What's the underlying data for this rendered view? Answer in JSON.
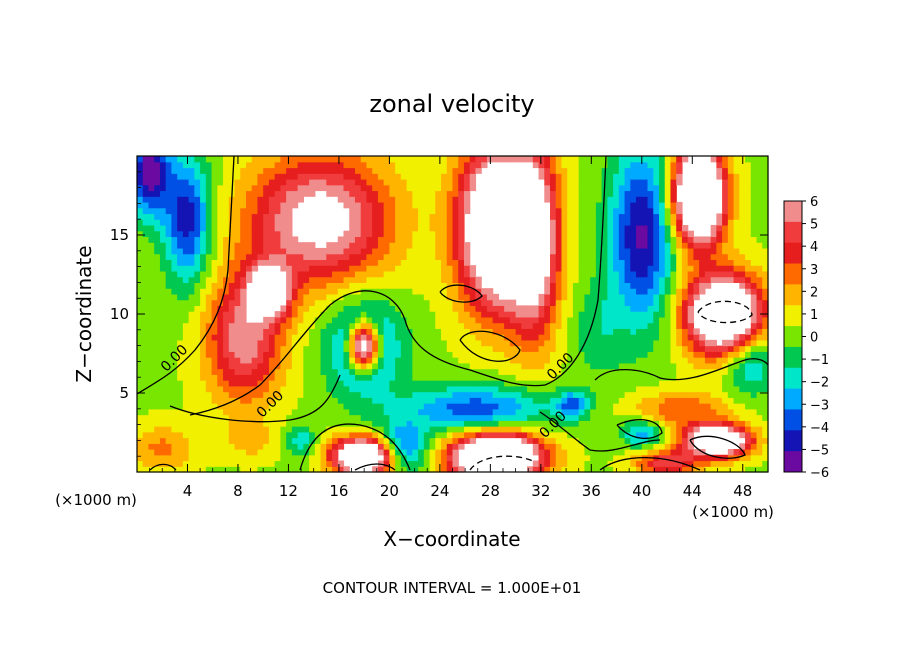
{
  "chart_data": {
    "type": "heatmap",
    "title": "zonal velocity",
    "xlabel": "X−coordinate",
    "ylabel": "Z−coordinate",
    "x_unit_label": "(×1000 m)",
    "x_unit_label_right": "(×1000 m)",
    "footer": "CONTOUR INTERVAL = 1.000E+01",
    "xlim": [
      0,
      50
    ],
    "ylim": [
      0,
      20
    ],
    "x_ticks": [
      4,
      8,
      12,
      16,
      20,
      24,
      28,
      32,
      36,
      40,
      44,
      48
    ],
    "y_ticks": [
      5,
      10,
      15
    ],
    "colorbar": {
      "min": -6,
      "max": 6,
      "labels": [
        "6",
        "5",
        "4",
        "3",
        "2",
        "1",
        "0",
        "−1",
        "−2",
        "−3",
        "−4",
        "−5",
        "−6"
      ],
      "colors": [
        "#f08c8c",
        "#f03c3c",
        "#e61e1e",
        "#ff6a00",
        "#ffb400",
        "#f0f000",
        "#78e600",
        "#00c850",
        "#00e6c8",
        "#00aaff",
        "#0050e6",
        "#1414b4",
        "#6a0aa0"
      ]
    },
    "contour_labels": [
      {
        "text": "0.00",
        "x": 3.2,
        "z": 7.0
      },
      {
        "text": "0.00",
        "x": 10.8,
        "z": 4.1
      },
      {
        "text": "0.00",
        "x": 33.8,
        "z": 6.5
      },
      {
        "text": "0.00",
        "x": 33.2,
        "z": 2.8
      }
    ],
    "fields": [
      {
        "x": 1.0,
        "z": 19.0,
        "sx": 1.6,
        "sz": 2.8,
        "amp": -6.5
      },
      {
        "x": 4.0,
        "z": 16.0,
        "sx": 1.8,
        "sz": 4.0,
        "amp": -5.5
      },
      {
        "x": 14.5,
        "z": 16.0,
        "sx": 5.5,
        "sz": 4.0,
        "amp": 7.5
      },
      {
        "x": 8.5,
        "z": 8.5,
        "sx": 3.0,
        "sz": 4.0,
        "amp": 6.0
      },
      {
        "x": 10.5,
        "z": 11.5,
        "sx": 1.6,
        "sz": 1.6,
        "amp": 8.0
      },
      {
        "x": 18.0,
        "z": 8.0,
        "sx": 2.8,
        "sz": 3.0,
        "amp": -5.0
      },
      {
        "x": 18.0,
        "z": 8.0,
        "sx": 1.2,
        "sz": 1.5,
        "amp": 12.0
      },
      {
        "x": 31.5,
        "z": 14.5,
        "sx": 2.0,
        "sz": 6.0,
        "amp": 7.0
      },
      {
        "x": 28.5,
        "z": 15.5,
        "sx": 3.0,
        "sz": 5.0,
        "amp": 12.0
      },
      {
        "x": 40.0,
        "z": 15.0,
        "sx": 2.5,
        "sz": 5.5,
        "amp": -6.0
      },
      {
        "x": 44.5,
        "z": 17.5,
        "sx": 2.0,
        "sz": 3.0,
        "amp": 14.0
      },
      {
        "x": 46.5,
        "z": 10.0,
        "sx": 3.0,
        "sz": 2.5,
        "amp": 12.0
      },
      {
        "x": 27.0,
        "z": 4.0,
        "sx": 6.0,
        "sz": 1.5,
        "amp": -4.5
      },
      {
        "x": 21.0,
        "z": 1.5,
        "sx": 2.0,
        "sz": 1.5,
        "amp": -5.0
      },
      {
        "x": 18.0,
        "z": 1.0,
        "sx": 2.5,
        "sz": 1.2,
        "amp": 12.0
      },
      {
        "x": 28.5,
        "z": 1.0,
        "sx": 3.5,
        "sz": 1.5,
        "amp": 14.0
      },
      {
        "x": 34.5,
        "z": 4.3,
        "sx": 1.2,
        "sz": 0.8,
        "amp": -4.0
      },
      {
        "x": 40.0,
        "z": 2.5,
        "sx": 1.5,
        "sz": 0.9,
        "amp": -3.5
      },
      {
        "x": 43.0,
        "z": 4.0,
        "sx": 4.0,
        "sz": 1.2,
        "amp": 3.0
      },
      {
        "x": 46.0,
        "z": 2.0,
        "sx": 2.5,
        "sz": 1.0,
        "amp": 12.0
      },
      {
        "x": 42.0,
        "z": 0.6,
        "sx": 2.5,
        "sz": 0.8,
        "amp": 5.0
      },
      {
        "x": 2.0,
        "z": 1.5,
        "sx": 2.5,
        "sz": 1.5,
        "amp": 2.5
      },
      {
        "x": 9.0,
        "z": 2.0,
        "sx": 2.0,
        "sz": 1.2,
        "amp": 1.5
      },
      {
        "x": 13.0,
        "z": 2.0,
        "sx": 1.2,
        "sz": 1.0,
        "amp": -2.5
      },
      {
        "x": 36.5,
        "z": 9.0,
        "sx": 2.0,
        "sz": 3.0,
        "amp": -1.5
      },
      {
        "x": 48.5,
        "z": 7.0,
        "sx": 2.0,
        "sz": 2.0,
        "amp": -3.5
      }
    ]
  }
}
